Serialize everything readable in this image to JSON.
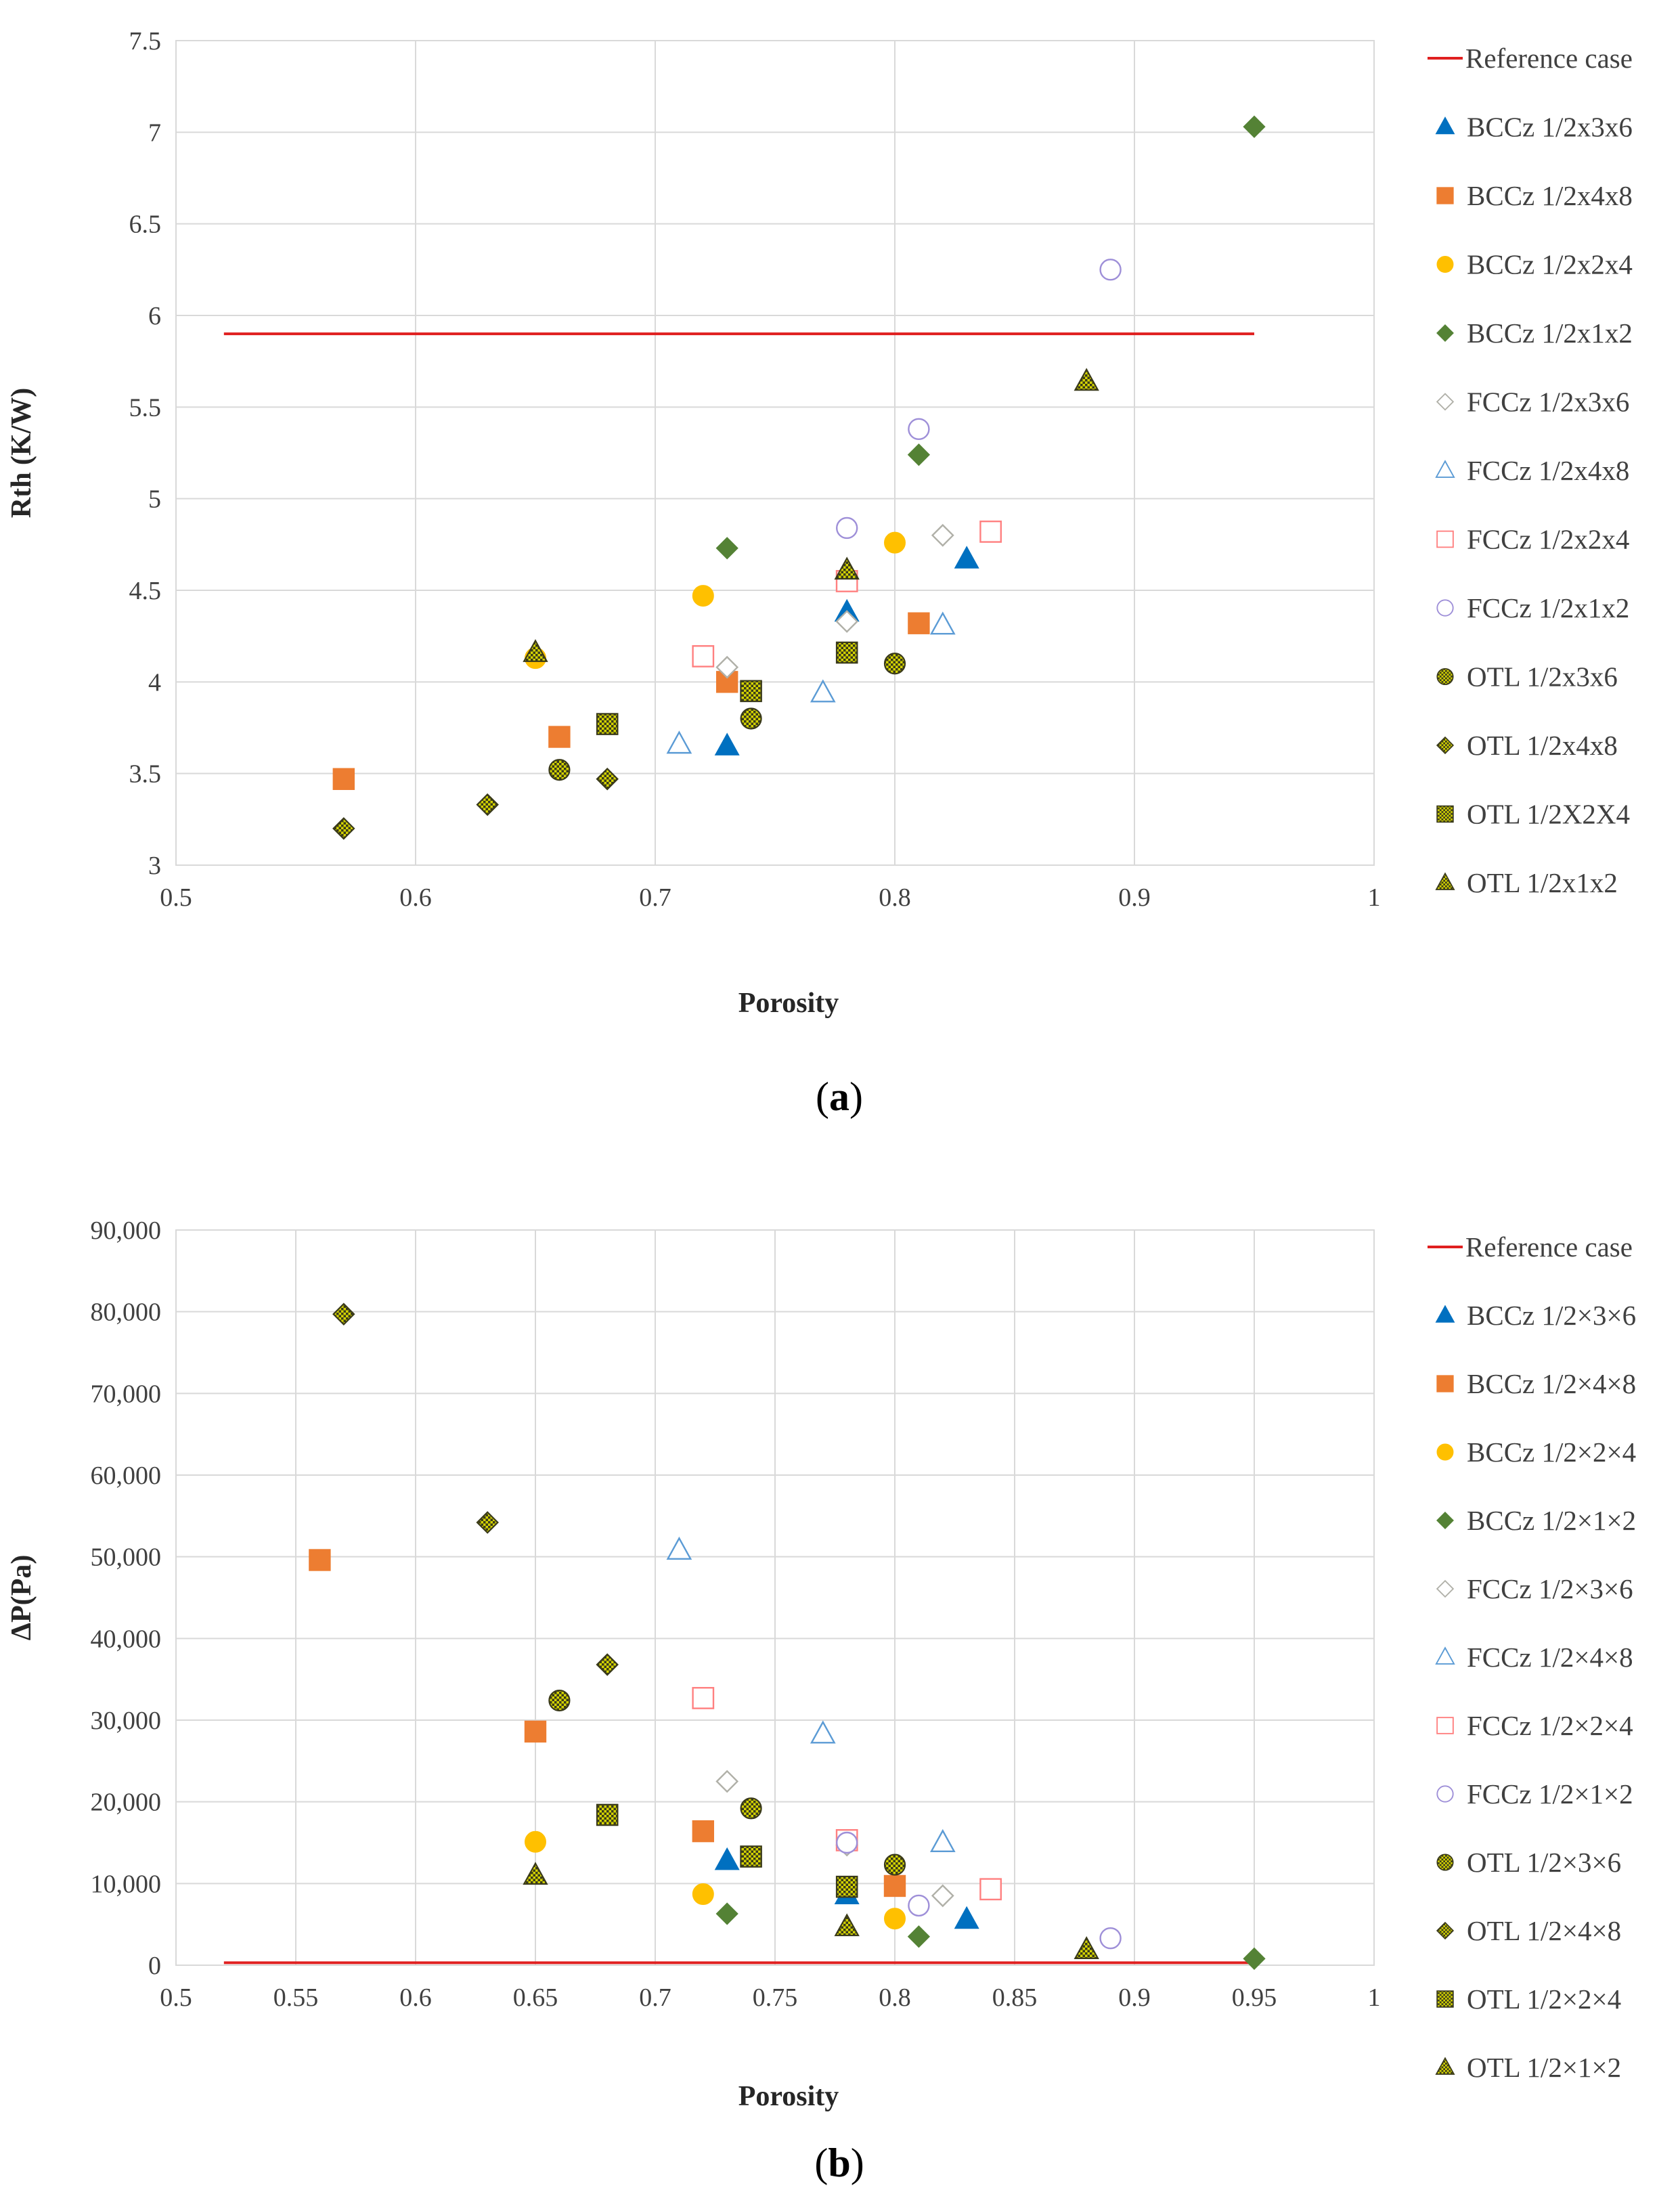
{
  "colors": {
    "reference": "#e02020",
    "bccz_1": "#0070c0",
    "bccz_2": "#ed7d31",
    "bccz_3": "#ffc000",
    "bccz_4": "#548235",
    "fccz_1": "#b0b0a8",
    "fccz_2": "#5b9bd5",
    "fccz_3": "#ff8080",
    "fccz_4": "#9e8fd8",
    "otl_fill": "#d4d400",
    "otl_edge": "#3a3a1a",
    "grid": "#d9d9d9"
  },
  "chart_data": [
    {
      "type": "scatter",
      "panel_label": "a",
      "xlabel": "Porosity",
      "ylabel": "Rth (K/W)",
      "xlim": [
        0.5,
        1.0
      ],
      "ylim": [
        3.0,
        7.5
      ],
      "x_ticks": [
        "0.5",
        "0.6",
        "0.7",
        "0.8",
        "0.9",
        "1"
      ],
      "y_ticks": [
        "3",
        "3.5",
        "4",
        "4.5",
        "5",
        "5.5",
        "6",
        "6.5",
        "7",
        "7.5"
      ],
      "grid": true,
      "legend_position": "right",
      "series": [
        {
          "name": "Reference case",
          "marker": "line",
          "color": "reference",
          "points": [
            [
              0.52,
              5.9
            ],
            [
              0.95,
              5.9
            ]
          ]
        },
        {
          "name": "BCCz 1/2x3x6",
          "marker": "triangle-filled",
          "color": "bccz_1",
          "points": [
            [
              0.73,
              3.65
            ],
            [
              0.78,
              4.38
            ],
            [
              0.83,
              4.67
            ]
          ]
        },
        {
          "name": "BCCz 1/2x4x8",
          "marker": "square-filled",
          "color": "bccz_2",
          "points": [
            [
              0.57,
              3.47
            ],
            [
              0.66,
              3.7
            ],
            [
              0.73,
              4.0
            ],
            [
              0.81,
              4.32
            ]
          ]
        },
        {
          "name": "BCCz 1/2x2x4",
          "marker": "circle-filled",
          "color": "bccz_3",
          "points": [
            [
              0.65,
              4.13
            ],
            [
              0.72,
              4.47
            ],
            [
              0.8,
              4.76
            ]
          ]
        },
        {
          "name": "BCCz 1/2x1x2",
          "marker": "diamond-filled",
          "color": "bccz_4",
          "points": [
            [
              0.73,
              4.73
            ],
            [
              0.81,
              5.24
            ],
            [
              0.95,
              7.03
            ]
          ]
        },
        {
          "name": "FCCz 1/2x3x6",
          "marker": "diamond-open",
          "color": "fccz_1",
          "points": [
            [
              0.73,
              4.08
            ],
            [
              0.78,
              4.33
            ],
            [
              0.82,
              4.8
            ]
          ]
        },
        {
          "name": "FCCz 1/2x4x8",
          "marker": "triangle-open",
          "color": "fccz_2",
          "points": [
            [
              0.71,
              3.66
            ],
            [
              0.77,
              3.94
            ],
            [
              0.82,
              4.31
            ]
          ]
        },
        {
          "name": "FCCz 1/2x2x4",
          "marker": "square-open",
          "color": "fccz_3",
          "points": [
            [
              0.72,
              4.14
            ],
            [
              0.78,
              4.55
            ],
            [
              0.84,
              4.82
            ]
          ]
        },
        {
          "name": "FCCz 1/2x1x2",
          "marker": "circle-open",
          "color": "fccz_4",
          "points": [
            [
              0.78,
              4.84
            ],
            [
              0.81,
              5.38
            ],
            [
              0.89,
              6.25
            ]
          ]
        },
        {
          "name": "OTL 1/2x3x6",
          "marker": "circle-hatched",
          "color": "otl_fill",
          "points": [
            [
              0.66,
              3.52
            ],
            [
              0.74,
              3.8
            ],
            [
              0.8,
              4.1
            ]
          ]
        },
        {
          "name": "OTL 1/2x4x8",
          "marker": "diamond-hatched",
          "color": "otl_fill",
          "points": [
            [
              0.57,
              3.2
            ],
            [
              0.63,
              3.33
            ],
            [
              0.68,
              3.47
            ]
          ]
        },
        {
          "name": "OTL 1/2X2X4",
          "marker": "square-hatched",
          "color": "otl_fill",
          "points": [
            [
              0.68,
              3.77
            ],
            [
              0.74,
              3.95
            ],
            [
              0.78,
              4.16
            ]
          ]
        },
        {
          "name": "OTL 1/2x1x2",
          "marker": "triangle-hatched",
          "color": "otl_fill",
          "points": [
            [
              0.65,
              4.16
            ],
            [
              0.78,
              4.61
            ],
            [
              0.88,
              5.64
            ]
          ]
        }
      ]
    },
    {
      "type": "scatter",
      "panel_label": "b",
      "xlabel": "Porosity",
      "ylabel": "ΔP(Pa)",
      "xlim": [
        0.5,
        1.0
      ],
      "ylim": [
        0,
        90000
      ],
      "x_ticks": [
        "0.5",
        "0.55",
        "0.6",
        "0.65",
        "0.7",
        "0.75",
        "0.8",
        "0.85",
        "0.9",
        "0.95",
        "1"
      ],
      "y_ticks": [
        "0",
        "10,000",
        "20,000",
        "30,000",
        "40,000",
        "50,000",
        "60,000",
        "70,000",
        "80,000",
        "90,000"
      ],
      "grid": true,
      "legend_position": "right",
      "series": [
        {
          "name": "Reference case",
          "marker": "line",
          "color": "reference",
          "points": [
            [
              0.52,
              300
            ],
            [
              0.95,
              300
            ]
          ]
        },
        {
          "name": "BCCz 1/2×3×6",
          "marker": "triangle-filled",
          "color": "bccz_1",
          "points": [
            [
              0.73,
              12800
            ],
            [
              0.78,
              8600
            ],
            [
              0.83,
              5600
            ]
          ]
        },
        {
          "name": "BCCz 1/2×4×8",
          "marker": "square-filled",
          "color": "bccz_2",
          "points": [
            [
              0.56,
              49600
            ],
            [
              0.65,
              28600
            ],
            [
              0.72,
              16400
            ],
            [
              0.8,
              9700
            ]
          ]
        },
        {
          "name": "BCCz 1/2×2×4",
          "marker": "circle-filled",
          "color": "bccz_3",
          "points": [
            [
              0.65,
              15100
            ],
            [
              0.72,
              8700
            ],
            [
              0.8,
              5700
            ]
          ]
        },
        {
          "name": "BCCz 1/2×1×2",
          "marker": "diamond-filled",
          "color": "bccz_4",
          "points": [
            [
              0.73,
              6300
            ],
            [
              0.81,
              3500
            ],
            [
              0.95,
              800
            ]
          ]
        },
        {
          "name": "FCCz 1/2×3×6",
          "marker": "diamond-open",
          "color": "fccz_1",
          "points": [
            [
              0.73,
              22500
            ],
            [
              0.78,
              14700
            ],
            [
              0.82,
              8500
            ]
          ]
        },
        {
          "name": "FCCz 1/2×4×8",
          "marker": "triangle-open",
          "color": "fccz_2",
          "points": [
            [
              0.71,
              50800
            ],
            [
              0.77,
              28300
            ],
            [
              0.82,
              15000
            ]
          ]
        },
        {
          "name": "FCCz 1/2×2×4",
          "marker": "square-open",
          "color": "fccz_3",
          "points": [
            [
              0.72,
              32700
            ],
            [
              0.78,
              15300
            ],
            [
              0.84,
              9300
            ]
          ]
        },
        {
          "name": "FCCz 1/2×1×2",
          "marker": "circle-open",
          "color": "fccz_4",
          "points": [
            [
              0.78,
              15000
            ],
            [
              0.81,
              7300
            ],
            [
              0.89,
              3300
            ]
          ]
        },
        {
          "name": "OTL 1/2×3×6",
          "marker": "circle-hatched",
          "color": "otl_fill",
          "points": [
            [
              0.66,
              32400
            ],
            [
              0.74,
              19200
            ],
            [
              0.8,
              12300
            ]
          ]
        },
        {
          "name": "OTL 1/2×4×8",
          "marker": "diamond-hatched",
          "color": "otl_fill",
          "points": [
            [
              0.57,
              79700
            ],
            [
              0.63,
              54200
            ],
            [
              0.68,
              36800
            ]
          ]
        },
        {
          "name": "OTL 1/2×2×4",
          "marker": "square-hatched",
          "color": "otl_fill",
          "points": [
            [
              0.68,
              18400
            ],
            [
              0.74,
              13300
            ],
            [
              0.78,
              9600
            ]
          ]
        },
        {
          "name": "OTL 1/2×1×2",
          "marker": "triangle-hatched",
          "color": "otl_fill",
          "points": [
            [
              0.65,
              11000
            ],
            [
              0.78,
              4700
            ],
            [
              0.88,
              1900
            ]
          ]
        }
      ]
    }
  ]
}
